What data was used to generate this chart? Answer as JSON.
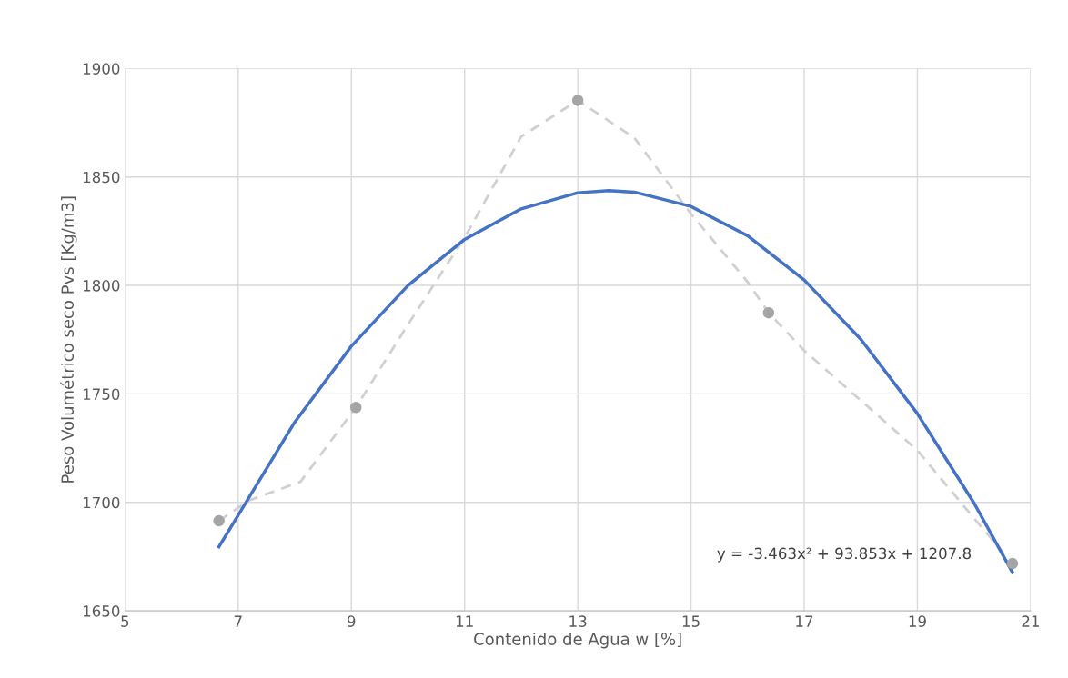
{
  "chart_data": {
    "type": "line",
    "xlabel": "Contenido de Agua w [%]",
    "ylabel": "Peso Volumétrico seco Pvs [Kg/m3]",
    "xlim": [
      5,
      21
    ],
    "xticks": [
      5,
      7,
      9,
      11,
      13,
      15,
      17,
      19,
      21
    ],
    "ylim": [
      1650,
      1900
    ],
    "yticks": [
      1650,
      1700,
      1750,
      1800,
      1850,
      1900
    ],
    "grid": true,
    "series": [
      {
        "color": "#d0d0d0",
        "marker": "none",
        "line_style": "dashed",
        "x": [
          6.66,
          7.2,
          8.1,
          9.08,
          10,
          11,
          12,
          13.0,
          14,
          15,
          16,
          16.37,
          17,
          18,
          19,
          20,
          20.68
        ],
        "values": [
          1691.5,
          1701,
          1709.5,
          1743.8,
          1782,
          1822,
          1868.6,
          1885.3,
          1868,
          1833,
          1801.6,
          1787.4,
          1770,
          1747,
          1724,
          1692.7,
          1671.8
        ]
      },
      {
        "type": "scatter",
        "color": "#a5a5a5",
        "marker": "circle",
        "x": [
          6.66,
          9.08,
          13.0,
          16.37,
          20.68
        ],
        "values": [
          1691.5,
          1743.8,
          1885.3,
          1787.4,
          1671.8
        ]
      },
      {
        "color": "#4472c4",
        "marker": "none",
        "line_style": "solid",
        "x": [
          6.66,
          8,
          9,
          10,
          11,
          12,
          13,
          13.55,
          14,
          15,
          16,
          17,
          18,
          19,
          20,
          20.68
        ],
        "values": [
          1679.5,
          1737.0,
          1772.0,
          1800.0,
          1821.2,
          1835.3,
          1842.7,
          1843.7,
          1843.0,
          1836.4,
          1822.9,
          1802.5,
          1775.2,
          1740.9,
          1699.7,
          1667.7
        ]
      }
    ],
    "annotations": [
      "y = -3.463x² + 93.853x + 1207.8"
    ]
  }
}
